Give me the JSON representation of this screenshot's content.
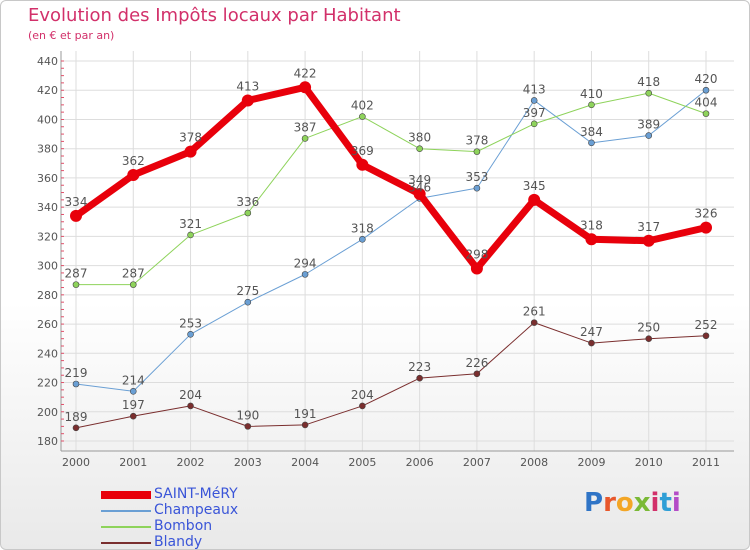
{
  "title": "Evolution des Impôts locaux par Habitant",
  "subtitle": "(en € et par an)",
  "logo": {
    "letters": [
      "P",
      "r",
      "o",
      "x",
      "i",
      "t",
      "i"
    ],
    "colors": [
      "#2f74c6",
      "#e8572b",
      "#f3a626",
      "#7ab936",
      "#d2306a",
      "#2f9fd6",
      "#b44cc7"
    ]
  },
  "chart_data": {
    "type": "line",
    "x": [
      "2000",
      "2001",
      "2002",
      "2003",
      "2004",
      "2005",
      "2006",
      "2007",
      "2008",
      "2009",
      "2010",
      "2011"
    ],
    "ylim": [
      180,
      440
    ],
    "yticks": [
      180,
      200,
      220,
      240,
      260,
      280,
      300,
      320,
      340,
      360,
      380,
      400,
      420,
      440
    ],
    "grid": true,
    "legend_position": "bottom-left",
    "series": [
      {
        "name": "SAINT-MéRY",
        "color": "#e8000b",
        "width": 7,
        "point_radius": 6,
        "label_color": "#555555",
        "values": [
          334,
          362,
          378,
          413,
          422,
          369,
          349,
          298,
          345,
          318,
          317,
          326
        ]
      },
      {
        "name": "Champeaux",
        "color": "#6a9fd4",
        "width": 1,
        "point_radius": 3,
        "label_color": "#555555",
        "values": [
          219,
          214,
          253,
          275,
          294,
          318,
          346,
          353,
          413,
          384,
          389,
          420
        ]
      },
      {
        "name": "Bombon",
        "color": "#8ed35b",
        "width": 1,
        "point_radius": 3,
        "label_color": "#555555",
        "values": [
          287,
          287,
          321,
          336,
          387,
          402,
          380,
          378,
          397,
          410,
          418,
          404
        ]
      },
      {
        "name": "Blandy",
        "color": "#7a2e2e",
        "width": 1,
        "point_radius": 3,
        "label_color": "#555555",
        "values": [
          189,
          197,
          204,
          190,
          191,
          204,
          223,
          226,
          261,
          247,
          250,
          252
        ]
      }
    ]
  }
}
